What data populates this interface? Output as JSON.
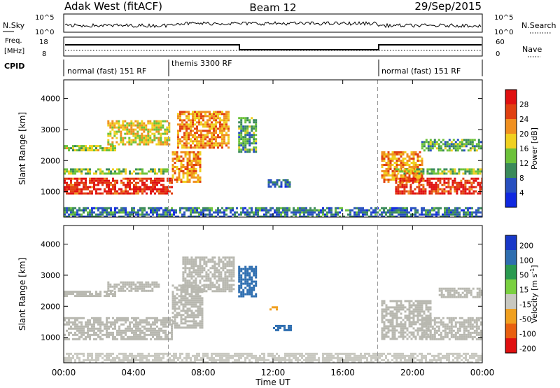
{
  "header": {
    "station": "Adak West (fitACF)",
    "beam": "Beam 12",
    "date": "29/Sep/2015"
  },
  "nsky_panel": {
    "left_label": "N.Sky",
    "right_label": "N.Search",
    "ticks": [
      "10^5",
      "10^0"
    ]
  },
  "freq_panel": {
    "left_label_1": "Freq.",
    "left_label_2": "[MHz]",
    "left_ticks": [
      "18",
      "8"
    ],
    "right_label": "Nave",
    "right_ticks": [
      "60",
      "0"
    ]
  },
  "cpid_panel": {
    "label": "CPID",
    "segments": [
      "normal (fast) 151 RF",
      "themis 3300 RF",
      "normal (fast) 151 RF"
    ]
  },
  "colors": {
    "power_scale": [
      "#1028e0",
      "#2850c0",
      "#3a8a5a",
      "#6cc23a",
      "#f0d020",
      "#f09020",
      "#e04010",
      "#e01010"
    ],
    "velocity_scale": [
      "#1838c8",
      "#2e6eb0",
      "#2a9a50",
      "#7ad040",
      "#c8c8c0",
      "#f0a020",
      "#e86010",
      "#e01010"
    ],
    "ground_scatter": "#b8b8b0"
  },
  "chart_data": [
    {
      "type": "heatmap",
      "name": "power",
      "ylabel": "Slant Range [km]",
      "ylim": [
        180,
        4600
      ],
      "yticks": [
        "1000",
        "2000",
        "3000",
        "4000"
      ],
      "x_range_ut_hours": [
        0,
        24
      ],
      "colorbar_label": "Power [dB]",
      "colorbar_ticks": [
        "4",
        "8",
        "12",
        "16",
        "20",
        "24",
        "28"
      ],
      "colorbar_range": [
        0,
        32
      ],
      "regions": [
        {
          "t0": 0.0,
          "t1": 6.2,
          "r0": 950,
          "r1": 1450,
          "level": 28
        },
        {
          "t0": 6.2,
          "t1": 7.8,
          "r0": 1300,
          "r1": 2300,
          "level": 22
        },
        {
          "t0": 0.0,
          "t1": 6.0,
          "r0": 1550,
          "r1": 1750,
          "level": 14
        },
        {
          "t0": 0.0,
          "t1": 3.0,
          "r0": 2300,
          "r1": 2500,
          "level": 16
        },
        {
          "t0": 2.5,
          "t1": 6.0,
          "r0": 2500,
          "r1": 3300,
          "level": 18
        },
        {
          "t0": 6.5,
          "t1": 9.5,
          "r0": 2400,
          "r1": 3600,
          "level": 22
        },
        {
          "t0": 10.0,
          "t1": 11.0,
          "r0": 2300,
          "r1": 3400,
          "level": 12
        },
        {
          "t0": 11.7,
          "t1": 13.0,
          "r0": 1150,
          "r1": 1400,
          "level": 8
        },
        {
          "t0": 18.2,
          "t1": 20.5,
          "r0": 1300,
          "r1": 2300,
          "level": 22
        },
        {
          "t0": 19.0,
          "t1": 24.0,
          "r0": 950,
          "r1": 1450,
          "level": 28
        },
        {
          "t0": 19.0,
          "t1": 24.0,
          "r0": 1550,
          "r1": 1750,
          "level": 14
        },
        {
          "t0": 20.5,
          "t1": 24.0,
          "r0": 2300,
          "r1": 2700,
          "level": 12
        },
        {
          "t0": 0.0,
          "t1": 24.0,
          "r0": 180,
          "r1": 500,
          "level": 8
        }
      ]
    },
    {
      "type": "heatmap",
      "name": "velocity",
      "ylabel": "Slant Range [km]",
      "xlabel": "Time UT",
      "ylim": [
        180,
        4600
      ],
      "yticks": [
        "1000",
        "2000",
        "3000",
        "4000"
      ],
      "x_range_ut_hours": [
        0,
        24
      ],
      "xticks": [
        "00:00",
        "04:00",
        "08:00",
        "12:00",
        "16:00",
        "20:00",
        "00:00"
      ],
      "colorbar_label": "Velocity [m s^-1]",
      "colorbar_ticks": [
        "200",
        "100",
        "50",
        "15",
        "-15",
        "-50",
        "-100",
        "-200"
      ],
      "regions": [
        {
          "t0": 0.0,
          "t1": 6.2,
          "r0": 950,
          "r1": 1650,
          "level": "ground"
        },
        {
          "t0": 6.2,
          "t1": 8.0,
          "r0": 1300,
          "r1": 2700,
          "level": "ground"
        },
        {
          "t0": 0.0,
          "t1": 3.0,
          "r0": 2300,
          "r1": 2500,
          "level": "ground"
        },
        {
          "t0": 2.5,
          "t1": 5.5,
          "r0": 2500,
          "r1": 2800,
          "level": "ground"
        },
        {
          "t0": 6.8,
          "t1": 9.8,
          "r0": 2500,
          "r1": 3600,
          "level": "ground"
        },
        {
          "t0": 10.0,
          "t1": 11.0,
          "r0": 2300,
          "r1": 3300,
          "level": 60
        },
        {
          "t0": 12.0,
          "t1": 13.0,
          "r0": 1200,
          "r1": 1400,
          "level": 60
        },
        {
          "t0": 11.8,
          "t1": 12.2,
          "r0": 1900,
          "r1": 2000,
          "level": -60
        },
        {
          "t0": 18.2,
          "t1": 21.0,
          "r0": 950,
          "r1": 2200,
          "level": "ground"
        },
        {
          "t0": 20.5,
          "t1": 24.0,
          "r0": 950,
          "r1": 1650,
          "level": "ground"
        },
        {
          "t0": 21.5,
          "t1": 24.0,
          "r0": 2300,
          "r1": 2600,
          "level": "ground"
        },
        {
          "t0": 0.0,
          "t1": 24.0,
          "r0": 180,
          "r1": 500,
          "level": -30
        }
      ]
    }
  ]
}
